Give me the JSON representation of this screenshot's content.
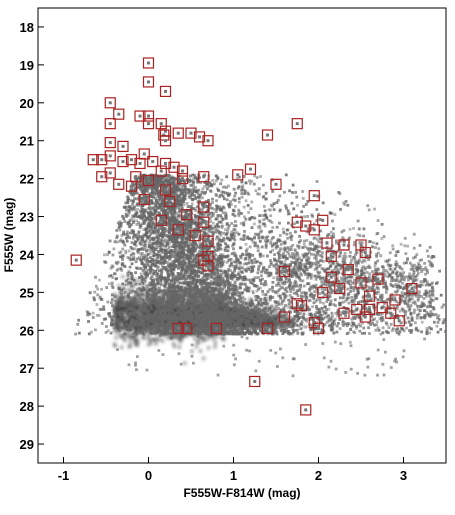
{
  "chart_data": {
    "type": "scatter",
    "title": "",
    "xlabel": "F555W-F814W (mag)",
    "ylabel": "F555W (mag)",
    "xlim": [
      -1.3,
      3.5
    ],
    "ylim": [
      29.5,
      17.5
    ],
    "y_inverted": true,
    "grid": false,
    "x_ticks": [
      -1,
      0,
      1,
      2,
      3
    ],
    "y_ticks": [
      18,
      19,
      20,
      21,
      22,
      23,
      24,
      25,
      26,
      27,
      28,
      29
    ],
    "background_points": {
      "name": "",
      "color": "#666666",
      "approx_count": 12000,
      "description_points": []
    },
    "series": [
      {
        "name": "",
        "marker": "square-outline",
        "color": "#aa2222",
        "points": [
          [
            0.0,
            18.95
          ],
          [
            0.0,
            19.45
          ],
          [
            0.2,
            19.7
          ],
          [
            -0.45,
            20.0
          ],
          [
            -0.35,
            20.3
          ],
          [
            -0.1,
            20.35
          ],
          [
            0.0,
            20.35
          ],
          [
            -0.45,
            20.55
          ],
          [
            0.15,
            20.55
          ],
          [
            0.0,
            20.55
          ],
          [
            0.2,
            20.75
          ],
          [
            0.35,
            20.8
          ],
          [
            0.5,
            20.8
          ],
          [
            0.6,
            20.9
          ],
          [
            0.7,
            21.0
          ],
          [
            0.18,
            20.85
          ],
          [
            0.2,
            21.0
          ],
          [
            -0.45,
            21.05
          ],
          [
            -0.3,
            21.15
          ],
          [
            1.4,
            20.85
          ],
          [
            1.75,
            20.55
          ],
          [
            -0.05,
            21.35
          ],
          [
            -0.45,
            21.4
          ],
          [
            -0.55,
            21.5
          ],
          [
            -0.65,
            21.5
          ],
          [
            -0.3,
            21.55
          ],
          [
            -0.2,
            21.5
          ],
          [
            -0.1,
            21.6
          ],
          [
            0.05,
            21.55
          ],
          [
            0.2,
            21.6
          ],
          [
            0.3,
            21.7
          ],
          [
            0.4,
            21.8
          ],
          [
            -0.45,
            21.85
          ],
          [
            -0.15,
            21.95
          ],
          [
            0.15,
            21.8
          ],
          [
            0.65,
            21.95
          ],
          [
            1.05,
            21.9
          ],
          [
            1.2,
            21.75
          ],
          [
            1.5,
            22.15
          ],
          [
            -0.55,
            21.95
          ],
          [
            -0.35,
            22.15
          ],
          [
            -0.2,
            22.2
          ],
          [
            0.0,
            22.05
          ],
          [
            0.2,
            22.3
          ],
          [
            0.4,
            22.0
          ],
          [
            -0.05,
            22.55
          ],
          [
            0.25,
            22.6
          ],
          [
            0.65,
            22.75
          ],
          [
            1.95,
            22.45
          ],
          [
            0.45,
            22.95
          ],
          [
            0.15,
            23.1
          ],
          [
            0.65,
            23.15
          ],
          [
            1.75,
            23.15
          ],
          [
            1.85,
            23.25
          ],
          [
            2.05,
            23.1
          ],
          [
            1.95,
            23.35
          ],
          [
            0.35,
            23.35
          ],
          [
            0.55,
            23.5
          ],
          [
            0.7,
            23.65
          ],
          [
            2.1,
            23.7
          ],
          [
            2.3,
            23.75
          ],
          [
            2.3,
            23.75
          ],
          [
            2.5,
            23.75
          ],
          [
            2.55,
            23.95
          ],
          [
            2.15,
            24.05
          ],
          [
            0.7,
            24.05
          ],
          [
            0.65,
            24.15
          ],
          [
            0.7,
            24.3
          ],
          [
            -0.85,
            24.15
          ],
          [
            1.6,
            24.45
          ],
          [
            2.35,
            24.4
          ],
          [
            2.15,
            24.6
          ],
          [
            2.7,
            24.65
          ],
          [
            2.5,
            24.75
          ],
          [
            2.25,
            24.9
          ],
          [
            2.05,
            25.0
          ],
          [
            3.1,
            24.9
          ],
          [
            2.6,
            25.1
          ],
          [
            2.9,
            25.2
          ],
          [
            1.75,
            25.3
          ],
          [
            1.8,
            25.35
          ],
          [
            2.45,
            25.45
          ],
          [
            2.6,
            25.45
          ],
          [
            2.75,
            25.4
          ],
          [
            2.85,
            25.55
          ],
          [
            2.95,
            25.75
          ],
          [
            2.55,
            25.65
          ],
          [
            1.6,
            25.65
          ],
          [
            1.95,
            25.8
          ],
          [
            2.3,
            25.55
          ],
          [
            0.35,
            25.95
          ],
          [
            0.45,
            25.95
          ],
          [
            0.8,
            25.95
          ],
          [
            1.4,
            25.95
          ],
          [
            2.0,
            25.95
          ],
          [
            1.25,
            27.35
          ],
          [
            1.85,
            28.1
          ]
        ]
      }
    ]
  }
}
